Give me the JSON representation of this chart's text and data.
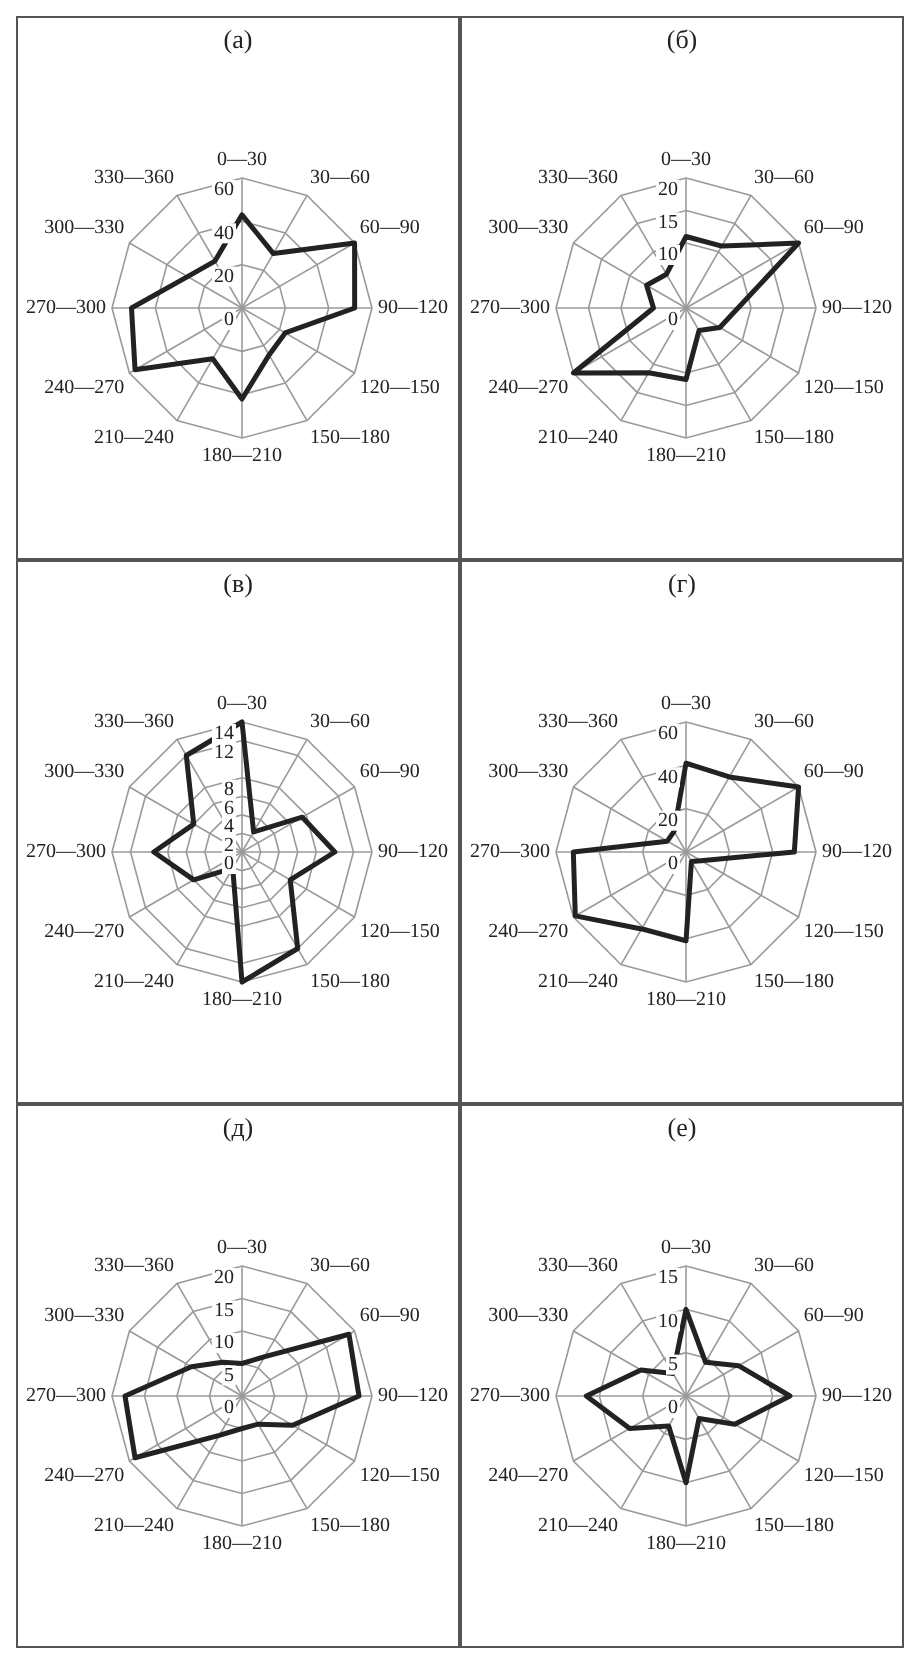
{
  "chart_data": [
    {
      "type": "radar",
      "title": "(а)",
      "categories": [
        "0—30",
        "30—60",
        "60—90",
        "90—120",
        "120—150",
        "150—180",
        "180—210",
        "210—240",
        "240—270",
        "270—300",
        "300—330",
        "330—360"
      ],
      "series": [
        {
          "color": "#222222",
          "values": [
            43,
            29,
            60,
            52,
            23,
            25,
            42,
            27,
            57,
            51,
            29,
            25
          ]
        }
      ],
      "ylim": [
        0,
        60
      ],
      "yticks": [
        0,
        20,
        40,
        60
      ],
      "grid": true,
      "marker": "none"
    },
    {
      "type": "radar",
      "title": "(б)",
      "categories": [
        "0—30",
        "30—60",
        "60—90",
        "90—120",
        "120—150",
        "150—180",
        "180—210",
        "210—240",
        "240—270",
        "270—300",
        "300—330",
        "330—360"
      ],
      "series": [
        {
          "color": "#222222",
          "values": [
            11,
            11,
            20,
            8,
            6,
            4,
            11,
            11.5,
            20,
            5,
            7,
            6
          ]
        }
      ],
      "ylim": [
        0,
        20
      ],
      "yticks": [
        0,
        10,
        15,
        20
      ],
      "grid": true,
      "marker": "none"
    },
    {
      "type": "radar",
      "title": "(в)",
      "categories": [
        "0—30",
        "30—60",
        "60—90",
        "90—120",
        "120—150",
        "150—180",
        "180—210",
        "210—240",
        "240—270",
        "270—300",
        "300—330",
        "330—360"
      ],
      "series": [
        {
          "color": "#222222",
          "values": [
            14,
            2.5,
            7.5,
            10,
            6,
            12,
            14,
            2,
            6,
            9.5,
            6,
            12
          ]
        }
      ],
      "ylim": [
        0,
        14
      ],
      "yticks": [
        0,
        2,
        4,
        6,
        8,
        12,
        14
      ],
      "grid": true,
      "marker": "none"
    },
    {
      "type": "radar",
      "title": "(г)",
      "categories": [
        "0—30",
        "30—60",
        "60—90",
        "90—120",
        "120—150",
        "150—180",
        "180—210",
        "210—240",
        "240—270",
        "270—300",
        "300—330",
        "330—360"
      ],
      "series": [
        {
          "color": "#222222",
          "values": [
            41,
            40,
            60,
            50,
            8,
            5,
            41,
            41,
            59,
            52,
            10,
            11
          ]
        }
      ],
      "ylim": [
        0,
        60
      ],
      "yticks": [
        0,
        20,
        40,
        60
      ],
      "grid": true,
      "marker": "none"
    },
    {
      "type": "radar",
      "title": "(д)",
      "categories": [
        "0—30",
        "30—60",
        "60—90",
        "90—120",
        "120—150",
        "150—180",
        "180—210",
        "210—240",
        "240—270",
        "270—300",
        "300—330",
        "330—360"
      ],
      "series": [
        {
          "color": "#222222",
          "values": [
            5,
            7,
            19,
            18,
            9,
            5,
            5,
            7,
            19,
            18,
            9,
            6
          ]
        }
      ],
      "ylim": [
        0,
        20
      ],
      "yticks": [
        0,
        5,
        10,
        15,
        20
      ],
      "grid": true,
      "marker": "none"
    },
    {
      "type": "radar",
      "title": "(е)",
      "categories": [
        "0—30",
        "30—60",
        "60—90",
        "90—120",
        "120—150",
        "150—180",
        "180—210",
        "210—240",
        "240—270",
        "270—300",
        "300—330",
        "330—360"
      ],
      "series": [
        {
          "color": "#222222",
          "values": [
            10,
            4.5,
            7,
            12,
            6.5,
            3,
            10,
            4,
            7.5,
            11.5,
            6,
            3
          ]
        }
      ],
      "ylim": [
        0,
        15
      ],
      "yticks": [
        0,
        5,
        10,
        15
      ],
      "grid": true,
      "marker": "none"
    }
  ]
}
